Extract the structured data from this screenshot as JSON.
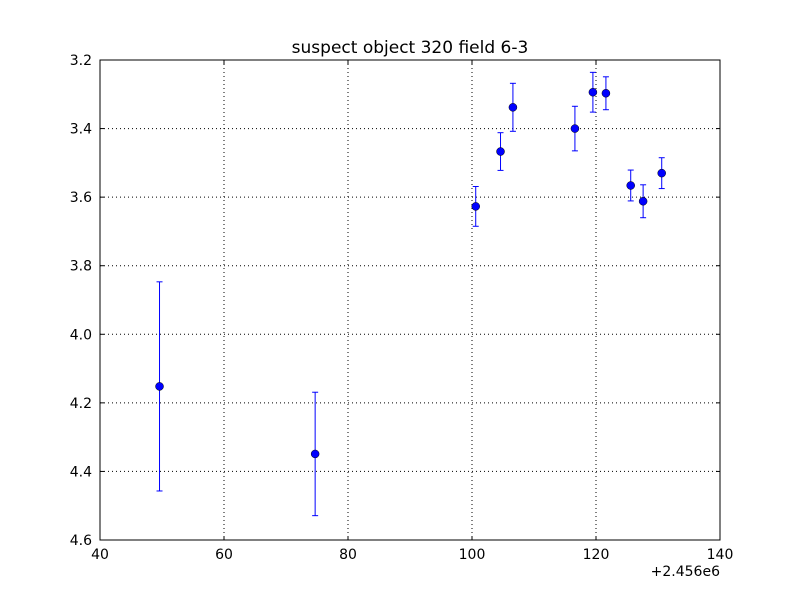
{
  "chart_data": {
    "type": "scatter",
    "title": "suspect object 320 field 6-3",
    "xlabel": "",
    "ylabel": "",
    "x_offset_label": "+2.456e6",
    "xlim": [
      40,
      140
    ],
    "ylim": [
      3.2,
      4.6
    ],
    "y_inverted": true,
    "grid": true,
    "x_ticks": [
      40,
      60,
      80,
      100,
      120,
      140
    ],
    "x_tick_labels": [
      "40",
      "60",
      "80",
      "100",
      "120",
      "140"
    ],
    "y_ticks": [
      3.2,
      3.4,
      3.6,
      3.8,
      4.0,
      4.2,
      4.4,
      4.6
    ],
    "y_tick_labels": [
      "3.2",
      "3.4",
      "3.6",
      "3.8",
      "4.0",
      "4.2",
      "4.4",
      "4.6"
    ],
    "series": [
      {
        "color": "#0000ff",
        "marker": "circle",
        "points": [
          {
            "x": 49.6,
            "y": 4.152,
            "err": 0.305
          },
          {
            "x": 74.7,
            "y": 4.349,
            "err": 0.18
          },
          {
            "x": 100.6,
            "y": 3.627,
            "err": 0.058
          },
          {
            "x": 104.6,
            "y": 3.467,
            "err": 0.055
          },
          {
            "x": 106.6,
            "y": 3.338,
            "err": 0.07
          },
          {
            "x": 116.6,
            "y": 3.4,
            "err": 0.065
          },
          {
            "x": 119.5,
            "y": 3.294,
            "err": 0.058
          },
          {
            "x": 121.6,
            "y": 3.297,
            "err": 0.048
          },
          {
            "x": 125.6,
            "y": 3.566,
            "err": 0.045
          },
          {
            "x": 127.6,
            "y": 3.612,
            "err": 0.048
          },
          {
            "x": 130.6,
            "y": 3.53,
            "err": 0.045
          }
        ]
      }
    ]
  }
}
